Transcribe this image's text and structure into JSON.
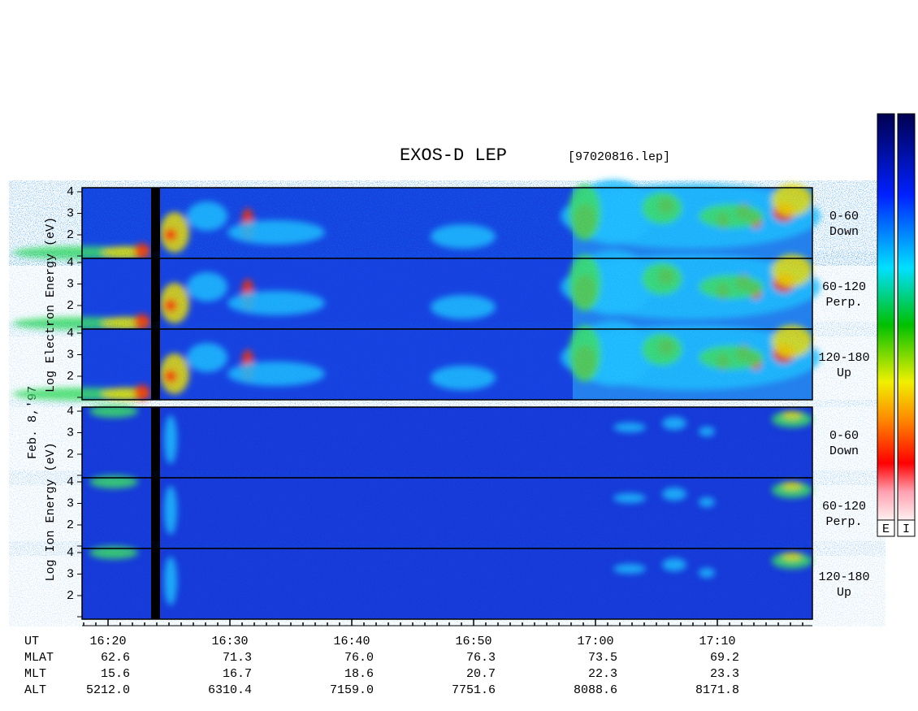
{
  "title": "EXOS-D LEP",
  "file": "[97020816.lep]",
  "date_label": "Feb. 8,'97",
  "groups": [
    {
      "label": "Log  Electron  Energy (eV)",
      "panels": [
        {
          "angle": "0-60",
          "direction": "Down"
        },
        {
          "angle": "60-120",
          "direction": "Perp."
        },
        {
          "angle": "120-180",
          "direction": "Up"
        }
      ]
    },
    {
      "label": "Log  Ion  Energy (eV)",
      "panels": [
        {
          "angle": "0-60",
          "direction": "Down"
        },
        {
          "angle": "60-120",
          "direction": "Perp."
        },
        {
          "angle": "120-180",
          "direction": "Up"
        }
      ]
    }
  ],
  "energy_ticks": [
    4,
    3,
    2
  ],
  "time_axis": {
    "row_labels": [
      "UT",
      "MLAT",
      "MLT",
      "ALT"
    ],
    "columns": [
      [
        "16:20",
        "62.6",
        "15.6",
        "5212.0"
      ],
      [
        "16:30",
        "71.3",
        "16.7",
        "6310.4"
      ],
      [
        "16:40",
        "76.0",
        "18.6",
        "7159.0"
      ],
      [
        "16:50",
        "76.3",
        "20.7",
        "7751.6"
      ],
      [
        "17:00",
        "73.5",
        "22.3",
        "8088.6"
      ],
      [
        "17:10",
        "69.2",
        "23.3",
        "8171.8"
      ]
    ]
  },
  "colorbar_labels": [
    "E",
    "I"
  ]
}
